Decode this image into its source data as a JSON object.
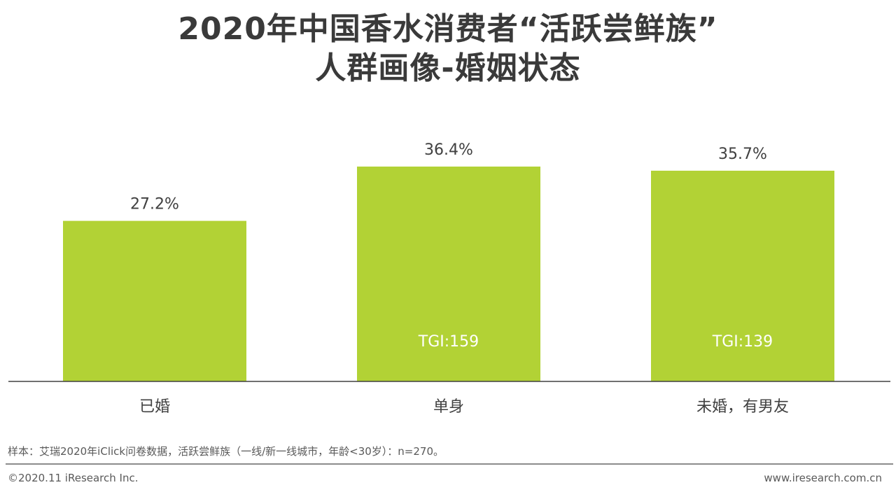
{
  "title": {
    "line1": "2020年中国香水消费者“活跃尝鲜族”",
    "line2": "人群画像-婚姻状态"
  },
  "chart_data": {
    "type": "bar",
    "categories": [
      "已婚",
      "单身",
      "未婚，有男友"
    ],
    "values": [
      27.2,
      36.4,
      35.7
    ],
    "value_labels": [
      "27.2%",
      "36.4%",
      "35.7%"
    ],
    "inner_labels": [
      "",
      "TGI:159",
      "TGI:139"
    ],
    "ylim": [
      0,
      100
    ],
    "grid": false,
    "bar_color": "#b2d235",
    "axis_color": "#404040"
  },
  "footer": {
    "source": "样本：艾瑞2020年iClick问卷数据，活跃尝鲜族（一线/新一线城市，年龄<30岁）：n=270。",
    "copyright": "©2020.11 iResearch Inc.",
    "website": "www.iresearch.com.cn"
  }
}
